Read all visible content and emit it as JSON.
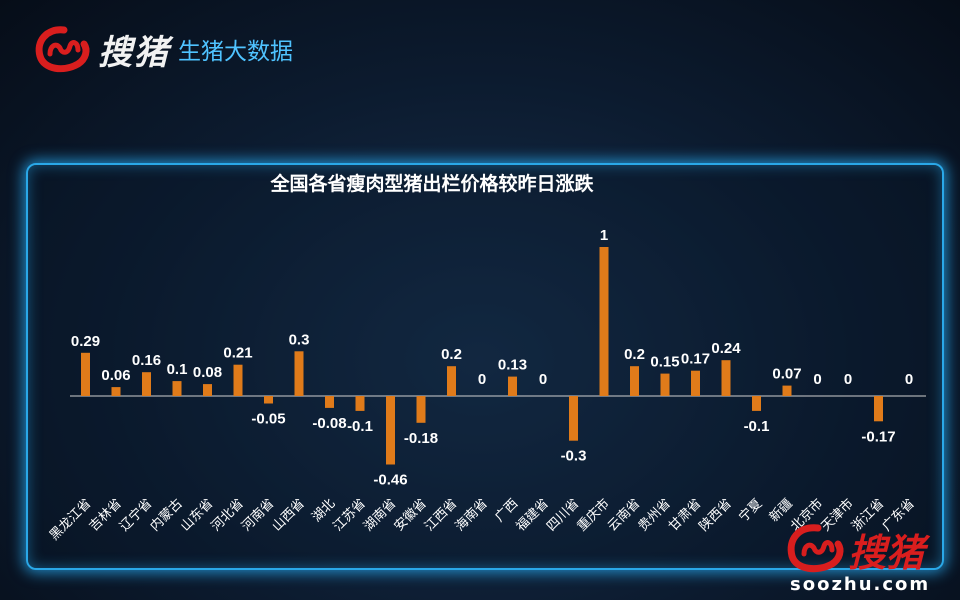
{
  "brand": {
    "logo_text": "搜猪",
    "subtitle": "生猪大数据",
    "watermark_domain": "soozhu.com"
  },
  "colors": {
    "bar": "#e07b1a",
    "accent": "#2aa8e8",
    "brand_red": "#d91e1e",
    "text": "#ffffff"
  },
  "chart_data": {
    "type": "bar",
    "title": "全国各省瘦肉型猪出栏价格较昨日涨跌",
    "categories": [
      "黑龙江省",
      "吉林省",
      "辽宁省",
      "内蒙古",
      "山东省",
      "河北省",
      "河南省",
      "山西省",
      "湖北",
      "江苏省",
      "湖南省",
      "安徽省",
      "江西省",
      "海南省",
      "广西",
      "福建省",
      "四川省",
      "重庆市",
      "云南省",
      "贵州省",
      "甘肃省",
      "陕西省",
      "宁夏",
      "新疆",
      "北京市",
      "天津市",
      "浙江省",
      "广东省"
    ],
    "values": [
      0.29,
      0.06,
      0.16,
      0.1,
      0.08,
      0.21,
      -0.05,
      0.3,
      -0.08,
      -0.1,
      -0.46,
      -0.18,
      0.2,
      0,
      0.13,
      0,
      -0.3,
      1,
      0.2,
      0.15,
      0.17,
      0.24,
      -0.1,
      0.07,
      0,
      0,
      -0.17,
      0
    ],
    "value_labels": [
      "0.29",
      "0.06",
      "0.16",
      "0.1",
      "0.08",
      "0.21",
      "-0.05",
      "0.3",
      "-0.08",
      "-0.1",
      "-0.46",
      "-0.18",
      "0.2",
      "0",
      "0.13",
      "0",
      "-0.3",
      "1",
      "0.2",
      "0.15",
      "0.17",
      "0.24",
      "-0.1",
      "0.07",
      "0",
      "0",
      "-0.17",
      "0"
    ],
    "xlabel": "",
    "ylabel": "",
    "grid": false,
    "legend": "none"
  }
}
